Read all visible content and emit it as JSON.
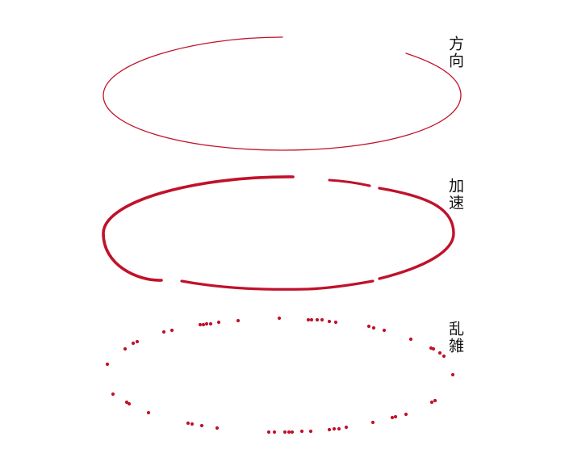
{
  "panels": [
    {
      "id": "direction",
      "label": "方向",
      "style": "thin-directional-stroke"
    },
    {
      "id": "acceleration",
      "label": "加速",
      "style": "tapered-gapped-stroke"
    },
    {
      "id": "random",
      "label": "乱雑",
      "style": "scattered-dots"
    }
  ],
  "colors": {
    "stroke": "#c0122b",
    "label": "#111111",
    "background": "#ffffff"
  }
}
